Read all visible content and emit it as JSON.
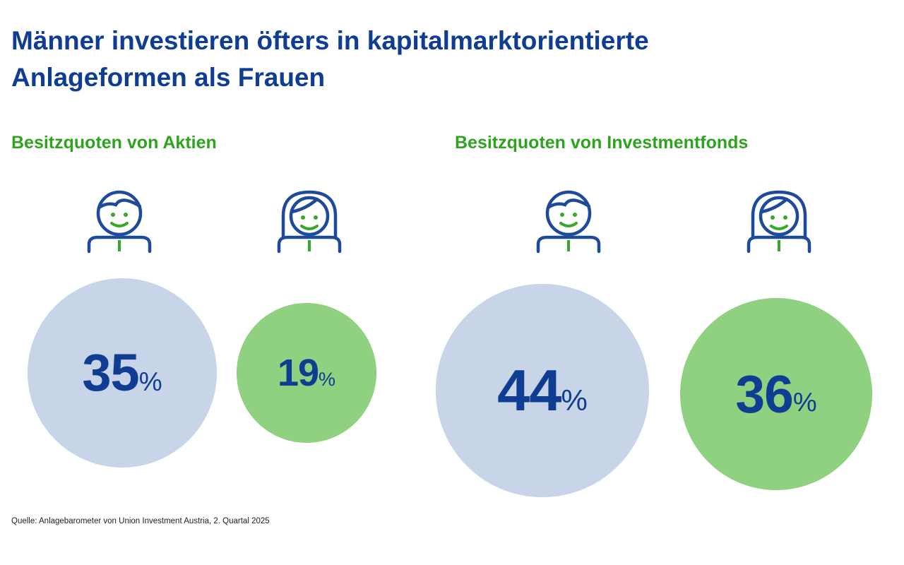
{
  "title": {
    "line1": "Männer investieren öfters in kapitalmarktorientierte",
    "line2": "Anlageformen als Frauen"
  },
  "colors": {
    "title": "#0e3d91",
    "subtitle": "#2ea31e",
    "male_bubble": "#c8d5e8",
    "female_bubble": "#8fd081",
    "icon_stroke": "#1e4a9c",
    "icon_face": "#36a82a"
  },
  "chart_data": [
    {
      "type": "bubble",
      "title": "Besitzquoten von Aktien",
      "categories": [
        "Männer",
        "Frauen"
      ],
      "values": [
        35,
        19
      ],
      "unit": "%",
      "labels": [
        "35",
        "19"
      ]
    },
    {
      "type": "bubble",
      "title": "Besitzquoten von Investmentfonds",
      "categories": [
        "Männer",
        "Frauen"
      ],
      "values": [
        44,
        36
      ],
      "unit": "%",
      "labels": [
        "44",
        "36"
      ]
    }
  ],
  "icons": {
    "male": "man-icon",
    "female": "woman-icon"
  },
  "source": "Quelle: Anlagebarometer von Union Investment Austria, 2. Quartal 2025"
}
